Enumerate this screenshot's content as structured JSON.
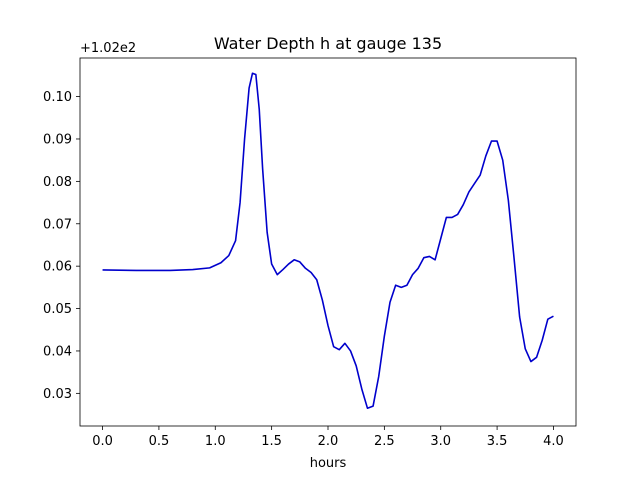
{
  "chart_data": {
    "type": "line",
    "title": "Water Depth h at gauge 135",
    "xlabel": "hours",
    "ylabel": "",
    "y_offset_label": "+1.02e2",
    "xlim": [
      -0.2,
      4.2
    ],
    "ylim": [
      0.0223,
      0.1091
    ],
    "x_ticks": [
      0.0,
      0.5,
      1.0,
      1.5,
      2.0,
      2.5,
      3.0,
      3.5,
      4.0
    ],
    "x_tick_labels": [
      "0.0",
      "0.5",
      "1.0",
      "1.5",
      "2.0",
      "2.5",
      "3.0",
      "3.5",
      "4.0"
    ],
    "y_ticks": [
      0.03,
      0.04,
      0.05,
      0.06,
      0.07,
      0.08,
      0.09,
      0.1
    ],
    "y_tick_labels": [
      "0.03",
      "0.04",
      "0.05",
      "0.06",
      "0.07",
      "0.08",
      "0.09",
      "0.10"
    ],
    "grid": false,
    "series": [
      {
        "color": "#0000cc",
        "x": [
          0.0,
          0.3,
          0.6,
          0.8,
          0.95,
          1.05,
          1.12,
          1.18,
          1.22,
          1.26,
          1.3,
          1.33,
          1.36,
          1.39,
          1.42,
          1.46,
          1.5,
          1.55,
          1.6,
          1.65,
          1.7,
          1.75,
          1.8,
          1.85,
          1.9,
          1.95,
          2.0,
          2.05,
          2.1,
          2.15,
          2.2,
          2.25,
          2.3,
          2.35,
          2.4,
          2.45,
          2.5,
          2.55,
          2.6,
          2.65,
          2.7,
          2.75,
          2.8,
          2.85,
          2.9,
          2.95,
          3.0,
          3.05,
          3.1,
          3.15,
          3.2,
          3.25,
          3.3,
          3.35,
          3.4,
          3.45,
          3.5,
          3.55,
          3.6,
          3.65,
          3.7,
          3.75,
          3.8,
          3.85,
          3.9,
          3.95,
          4.0
        ],
        "y": [
          0.0591,
          0.059,
          0.059,
          0.0592,
          0.0596,
          0.0608,
          0.0625,
          0.066,
          0.075,
          0.09,
          0.102,
          0.1055,
          0.1052,
          0.097,
          0.083,
          0.068,
          0.0605,
          0.058,
          0.0592,
          0.0605,
          0.0615,
          0.061,
          0.0595,
          0.0585,
          0.0568,
          0.052,
          0.046,
          0.041,
          0.0403,
          0.0418,
          0.04,
          0.0365,
          0.031,
          0.0265,
          0.027,
          0.034,
          0.0435,
          0.0515,
          0.0555,
          0.055,
          0.0555,
          0.058,
          0.0595,
          0.062,
          0.0623,
          0.0615,
          0.0665,
          0.0715,
          0.0715,
          0.0722,
          0.0745,
          0.0775,
          0.0795,
          0.0815,
          0.086,
          0.0895,
          0.0895,
          0.085,
          0.0755,
          0.062,
          0.048,
          0.0405,
          0.0375,
          0.0385,
          0.0425,
          0.0475,
          0.0482
        ]
      }
    ]
  }
}
